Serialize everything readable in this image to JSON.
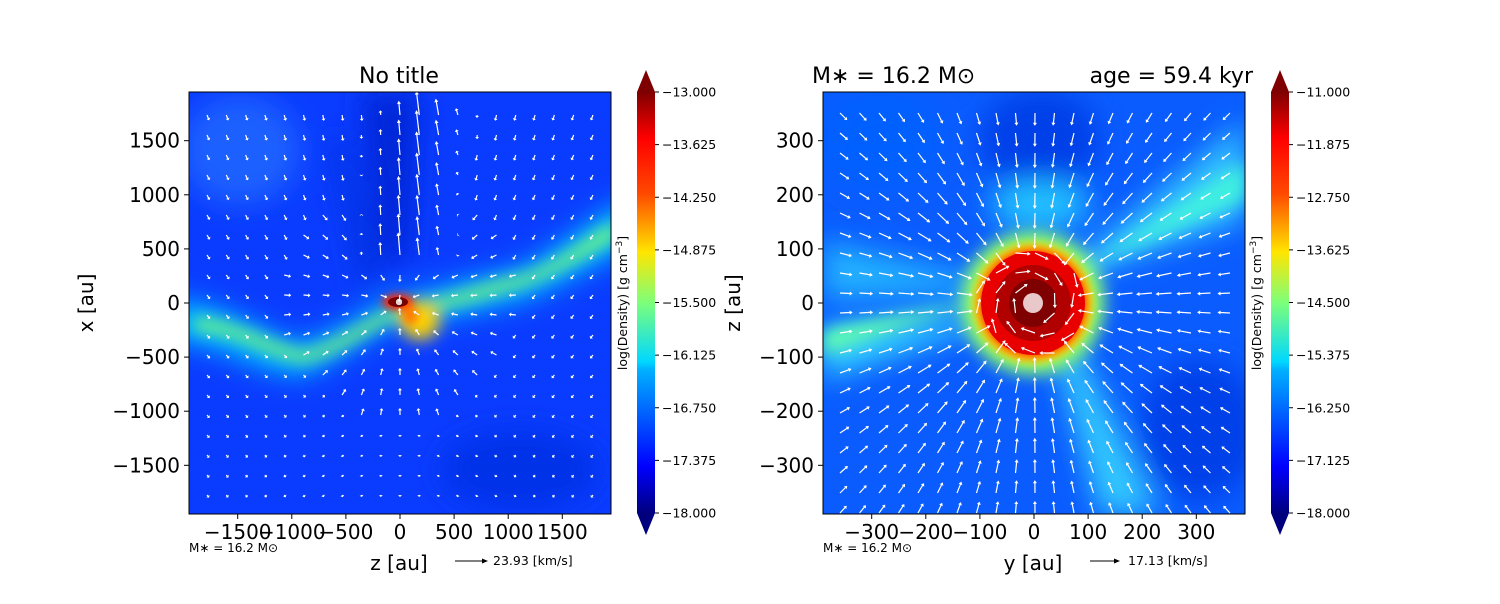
{
  "chart_data": [
    {
      "type": "heatmap",
      "title": "No title",
      "xlabel": "z [au]",
      "ylabel": "x [au]",
      "xlim": [
        -1950,
        1950
      ],
      "ylim": [
        -1950,
        1950
      ],
      "xticks": [
        -1500,
        -1000,
        -500,
        0,
        500,
        1000,
        1500
      ],
      "yticks": [
        -1500,
        -1000,
        -500,
        0,
        500,
        1000,
        1500
      ],
      "colorbar": {
        "label": "log(Density) [g cm$^{-3}$]",
        "label_text": "log(Density) [g cm",
        "label_sup": "−3",
        "label_end": "]",
        "min": -18.0,
        "max": -13.0,
        "ticks": [
          "−13.000",
          "−13.625",
          "−14.250",
          "−14.875",
          "−15.500",
          "−16.125",
          "−16.750",
          "−17.375",
          "−18.000"
        ],
        "colormap": "jet",
        "extend": "both"
      },
      "footnote": "M∗ = 16.2 M⊙",
      "quiver_key": "23.93 [km/s]",
      "features": {
        "filament": "diagonal dense filament from lower-left to upper-right through center",
        "outflow": "low-density cavity above center with fast upward-pointing vectors"
      }
    },
    {
      "type": "heatmap",
      "title": "M∗ = 16.2 M⊙        age = 59.4 kyr",
      "title_left": "M∗ = 16.2 M⊙",
      "title_right": "age = 59.4 kyr",
      "xlabel": "y [au]",
      "ylabel": "z [au]",
      "xlim": [
        -390,
        390
      ],
      "ylim": [
        -390,
        390
      ],
      "xticks": [
        -300,
        -200,
        -100,
        0,
        100,
        200,
        300
      ],
      "yticks": [
        -300,
        -200,
        -100,
        0,
        100,
        200,
        300
      ],
      "colorbar": {
        "label": "log(Density) [g cm$^{-3}$]",
        "label_text": "log(Density) [g cm",
        "label_sup": "−3",
        "label_end": "]",
        "min": -18.0,
        "max": -11.0,
        "ticks": [
          "−11.000",
          "−11.875",
          "−12.750",
          "−13.625",
          "−14.500",
          "−15.375",
          "−16.250",
          "−17.125",
          "−18.000"
        ],
        "colormap": "jet",
        "extend": "both"
      },
      "footnote": "M∗ = 16.2 M⊙",
      "quiver_key": "17.13 [km/s]",
      "features": {
        "core": "dense red core of radius ~110 au at center with star marker",
        "filaments": "radial streamers of intermediate density"
      }
    }
  ]
}
